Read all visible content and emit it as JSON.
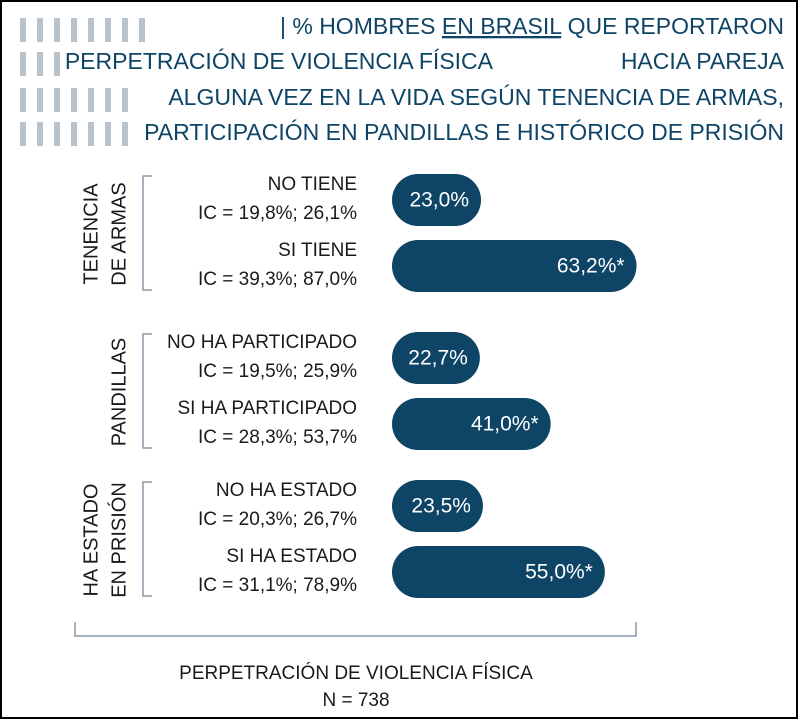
{
  "chart_data": {
    "type": "bar",
    "orientation": "horizontal",
    "title_lines": [
      [
        "|",
        "% HOMBRES",
        "EN BRASIL",
        "QUE REPORTARON"
      ],
      [
        "PERPETRACIÓN DE VIOLENCIA FÍSICA",
        "HACIA PAREJA"
      ],
      [
        "ALGUNA VEZ EN LA VIDA SEGÚN TENENCIA DE ARMAS,"
      ],
      [
        "PARTICIPACIÓN EN PANDILLAS E HISTÓRICO DE  PRISIÓN"
      ]
    ],
    "color": "#0e4466",
    "xlim": [
      0,
      100
    ],
    "groups": [
      {
        "name_lines": [
          "TENENCIA",
          "DE ARMAS"
        ],
        "categories": [
          "NO TIENE",
          "SI TIENE"
        ],
        "intervals": [
          "IC = 19,8%; 26,1%",
          "IC = 39,3%; 87,0%"
        ],
        "values": [
          23.0,
          63.2
        ],
        "value_labels": [
          "23,0%",
          "63,2%*"
        ]
      },
      {
        "name_lines": [
          "PANDILLAS"
        ],
        "categories": [
          "NO HA PARTICIPADO",
          "SI HA PARTICIPADO"
        ],
        "intervals": [
          "IC = 19,5%; 25,9%",
          "IC = 28,3%; 53,7%"
        ],
        "values": [
          22.7,
          41.0
        ],
        "value_labels": [
          "22,7%",
          "41,0%*"
        ]
      },
      {
        "name_lines": [
          "HA ESTADO",
          "EN PRISIÓN"
        ],
        "categories": [
          "NO HA ESTADO",
          "SI HA ESTADO"
        ],
        "intervals": [
          "IC = 20,3%; 26,7%",
          "IC = 31,1%; 78,9%"
        ],
        "values": [
          23.5,
          55.0
        ],
        "value_labels": [
          "23,5%",
          "55,0%*"
        ]
      }
    ],
    "footer_lines": [
      "PERPETRACIÓN DE VIOLENCIA FÍSICA",
      "N = 738"
    ]
  }
}
